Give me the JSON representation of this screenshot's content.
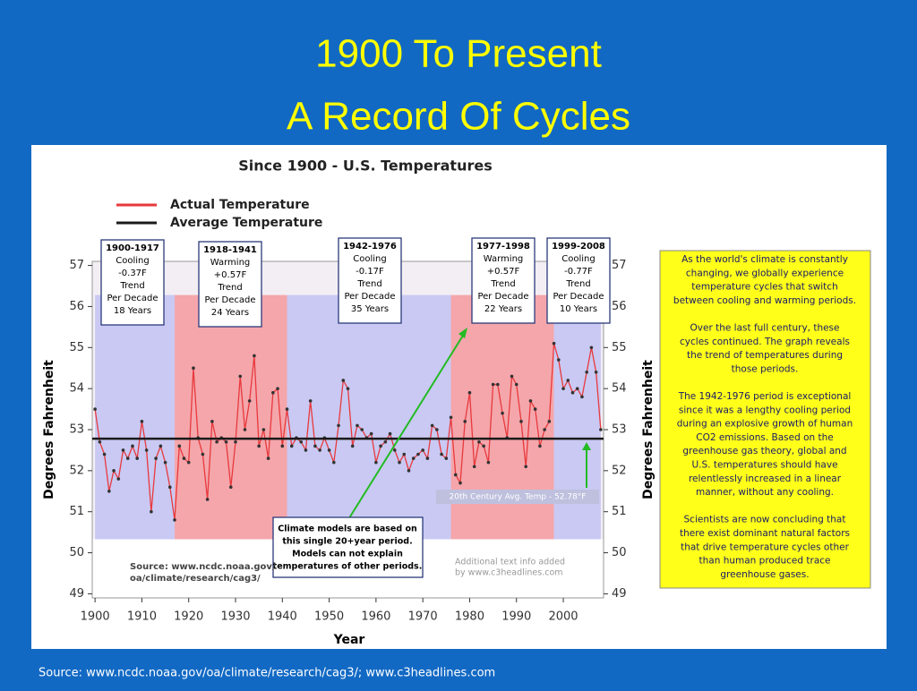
{
  "slide_title": [
    "1900 To Present",
    "A Record Of Cycles"
  ],
  "source": "Source: www.ncdc.noaa.gov/oa/climate/research/cag3/; www.c3headlines.com",
  "chart_data": {
    "type": "line",
    "title": "Since 1900 - U.S. Temperatures",
    "x_label": "Year",
    "y_label": "Degrees Fahrenheit",
    "y2_label": "Degrees Fahrenheit",
    "x": [
      1900,
      1901,
      1902,
      1903,
      1904,
      1905,
      1906,
      1907,
      1908,
      1909,
      1910,
      1911,
      1912,
      1913,
      1914,
      1915,
      1916,
      1917,
      1918,
      1919,
      1920,
      1921,
      1922,
      1923,
      1924,
      1925,
      1926,
      1927,
      1928,
      1929,
      1930,
      1931,
      1932,
      1933,
      1934,
      1935,
      1936,
      1937,
      1938,
      1939,
      1940,
      1941,
      1942,
      1943,
      1944,
      1945,
      1946,
      1947,
      1948,
      1949,
      1950,
      1951,
      1952,
      1953,
      1954,
      1955,
      1956,
      1957,
      1958,
      1959,
      1960,
      1961,
      1962,
      1963,
      1964,
      1965,
      1966,
      1967,
      1968,
      1969,
      1970,
      1971,
      1972,
      1973,
      1974,
      1975,
      1976,
      1977,
      1978,
      1979,
      1980,
      1981,
      1982,
      1983,
      1984,
      1985,
      1986,
      1987,
      1988,
      1989,
      1990,
      1991,
      1992,
      1993,
      1994,
      1995,
      1996,
      1997,
      1998,
      1999,
      2000,
      2001,
      2002,
      2003,
      2004,
      2005,
      2006,
      2007,
      2008
    ],
    "series": [
      {
        "name": "Actual Temperature",
        "color": "#e8393c",
        "values": [
          53.5,
          52.7,
          52.4,
          51.5,
          52.0,
          51.8,
          52.5,
          52.3,
          52.6,
          52.3,
          53.2,
          52.5,
          51.0,
          52.3,
          52.6,
          52.2,
          51.6,
          50.8,
          52.6,
          52.3,
          52.2,
          54.5,
          52.8,
          52.4,
          51.3,
          53.2,
          52.7,
          52.8,
          52.7,
          51.6,
          52.7,
          54.3,
          53.0,
          53.7,
          54.8,
          52.6,
          53.0,
          52.3,
          53.9,
          54.0,
          52.6,
          53.5,
          52.6,
          52.8,
          52.7,
          52.5,
          53.7,
          52.6,
          52.5,
          52.8,
          52.5,
          52.2,
          53.1,
          54.2,
          54.0,
          52.6,
          53.1,
          53.0,
          52.8,
          52.9,
          52.2,
          52.6,
          52.7,
          52.9,
          52.5,
          52.2,
          52.4,
          52.0,
          52.3,
          52.4,
          52.5,
          52.3,
          53.1,
          53.0,
          52.4,
          52.3,
          53.3,
          51.9,
          51.7,
          53.2,
          53.9,
          52.1,
          52.7,
          52.6,
          52.2,
          54.1,
          54.1,
          53.4,
          52.8,
          54.3,
          54.1,
          53.2,
          52.1,
          53.7,
          53.5,
          52.6,
          53.0,
          53.2,
          55.1,
          54.7,
          54.0,
          54.2,
          53.9,
          54.0,
          53.8,
          54.4,
          55.0,
          54.4,
          53.0
        ]
      }
    ],
    "reference_line": {
      "name": "Average Temperature",
      "color": "#1a1a1a",
      "value": 52.78,
      "label": "20th Century Avg. Temp - 52.78°F"
    },
    "periods": [
      {
        "start": 1900,
        "end": 1917,
        "color": "#c9c9f3",
        "lines": [
          "1900-1917",
          "Cooling",
          "-0.37F",
          "Trend",
          "Per Decade",
          "18 Years"
        ]
      },
      {
        "start": 1917,
        "end": 1941,
        "color": "#f4a6ab",
        "lines": [
          "1918-1941",
          "Warming",
          "+0.57F",
          "Trend",
          "Per Decade",
          "24 Years"
        ]
      },
      {
        "start": 1941,
        "end": 1976,
        "color": "#c9c9f3",
        "lines": [
          "1942-1976",
          "Cooling",
          "-0.17F",
          "Trend",
          "Per Decade",
          "35 Years"
        ]
      },
      {
        "start": 1976,
        "end": 1998,
        "color": "#f4a6ab",
        "lines": [
          "1977-1998",
          "Warming",
          "+0.57F",
          "Trend",
          "Per Decade",
          "22 Years"
        ]
      },
      {
        "start": 1998,
        "end": 2008,
        "color": "#c9c9f3",
        "lines": [
          "1999-2008",
          "Cooling",
          "-0.77F",
          "Trend",
          "Per Decade",
          "10 Years"
        ]
      }
    ],
    "band_ylim": [
      50.33,
      56.28
    ],
    "xlim": [
      1899.4,
      2008.6
    ],
    "xticks": [
      1900,
      1910,
      1920,
      1930,
      1940,
      1950,
      1960,
      1970,
      1980,
      1990,
      2000
    ],
    "ylim": [
      48.9,
      57.1
    ],
    "yticks": [
      49,
      50,
      51,
      52,
      53,
      54,
      55,
      56,
      57
    ],
    "models_note": [
      "Climate models are based on",
      "this single 20+year period.",
      "Models can not explain",
      "temperatures of other periods."
    ],
    "chart_source": [
      "Source: www.ncdc.noaa.gov/",
      "oa/climate/research/cag3/"
    ],
    "credit": [
      "Additional text info added",
      "by www.c3headlines.com"
    ],
    "side_note": [
      "As the world's climate is constantly",
      "changing, we globally experience",
      "temperature cycles that switch",
      "between cooling and warming periods.",
      "",
      "Over the last full century, these",
      "cycles continued. The graph reveals",
      "the trend of temperatures during",
      "those periods.",
      "",
      "The 1942-1976 period is exceptional",
      "since it was a lengthy cooling period",
      "during an explosive growth of human",
      "CO2 emissions. Based on the",
      "greenhouse gas theory, global and",
      "U.S. temperatures should have",
      "relentlessly increased in a linear",
      "manner, without any cooling.",
      "",
      "Scientists are now concluding that",
      "there exist dominant natural factors",
      "that drive temperature cycles other",
      "than human produced trace",
      "greenhouse gases."
    ]
  }
}
